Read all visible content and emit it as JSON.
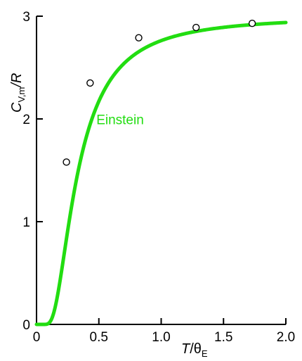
{
  "chart_data": {
    "type": "line",
    "title": "",
    "xlabel": {
      "main": "T",
      "slash": "/",
      "symbol": "θ",
      "sub": "E"
    },
    "ylabel": {
      "main": "C",
      "sub": "V,m",
      "slash": "/",
      "denom": "R"
    },
    "xlim": [
      0,
      2.0
    ],
    "ylim": [
      0,
      3
    ],
    "x_ticks": [
      "0",
      "0.5",
      "1.0",
      "1.5",
      "2.0"
    ],
    "y_ticks": [
      "0",
      "1",
      "2",
      "3"
    ],
    "grid": false,
    "series": [
      {
        "name": "Einstein",
        "style": "line",
        "color": "#22dd11",
        "function": "einstein_heat_capacity",
        "x": [
          0.05,
          0.1,
          0.15,
          0.2,
          0.3,
          0.4,
          0.5,
          0.6,
          0.8,
          1.0,
          1.2,
          1.5,
          1.75,
          2.0
        ],
        "y": [
          0.0,
          0.01,
          0.2,
          0.53,
          1.21,
          1.71,
          2.0,
          2.27,
          2.57,
          2.76,
          2.83,
          2.88,
          2.91,
          2.93
        ]
      },
      {
        "style": "markers",
        "marker": "open-circle",
        "color": "#000000",
        "x": [
          0.24,
          0.43,
          0.82,
          1.28,
          1.73
        ],
        "y": [
          1.58,
          2.35,
          2.79,
          2.89,
          2.93
        ]
      }
    ]
  }
}
